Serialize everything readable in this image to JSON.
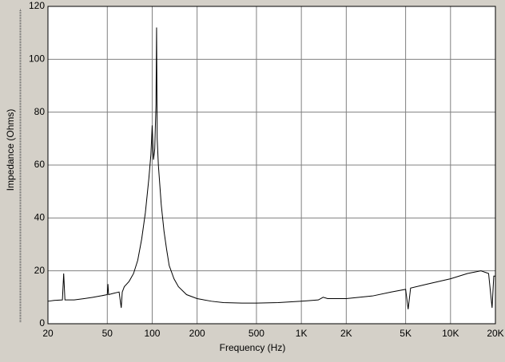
{
  "chart_data": {
    "type": "line",
    "x_label": "Frequency (Hz)",
    "y_label": "Impedance (Ohms)",
    "x_scale": "log",
    "grid": true,
    "xlim": [
      20,
      20000
    ],
    "ylim": [
      0,
      120
    ],
    "xticks": [
      20,
      50,
      100,
      200,
      500,
      {
        "value": 1000,
        "label": "1K"
      },
      {
        "value": 2000,
        "label": "2K"
      },
      {
        "value": 5000,
        "label": "5K"
      },
      {
        "value": 10000,
        "label": "10K"
      },
      {
        "value": 20000,
        "label": "20K"
      }
    ],
    "yticks": [
      0,
      20,
      40,
      60,
      80,
      100,
      120
    ],
    "x": [
      20,
      22,
      25,
      25.5,
      26,
      30,
      35,
      40,
      45,
      50,
      50.5,
      51,
      55,
      60,
      62,
      63,
      65,
      70,
      75,
      80,
      85,
      90,
      95,
      98,
      100,
      102,
      104,
      106,
      107,
      108,
      110,
      115,
      120,
      125,
      130,
      140,
      150,
      170,
      200,
      250,
      300,
      400,
      500,
      700,
      1000,
      1300,
      1400,
      1500,
      2000,
      3000,
      4000,
      5000,
      5200,
      5400,
      7000,
      10000,
      13000,
      16000,
      18000,
      19000,
      19500,
      20000
    ],
    "series": [
      {
        "name": "Impedance",
        "color": "#000000",
        "values": [
          8.5,
          8.8,
          9,
          19,
          9,
          9,
          9.5,
          10,
          10.5,
          11,
          15,
          11,
          11.5,
          12,
          6,
          12,
          14,
          16,
          19,
          24,
          32,
          42,
          55,
          64,
          75,
          62,
          66,
          83,
          112,
          70,
          60,
          45,
          35,
          28,
          22,
          17,
          14,
          11,
          9.5,
          8.5,
          8,
          7.8,
          7.8,
          8,
          8.5,
          9,
          10,
          9.5,
          9.5,
          10.5,
          12,
          13,
          5.5,
          13.5,
          15,
          17,
          19,
          20,
          19,
          6,
          18,
          18
        ]
      }
    ]
  }
}
